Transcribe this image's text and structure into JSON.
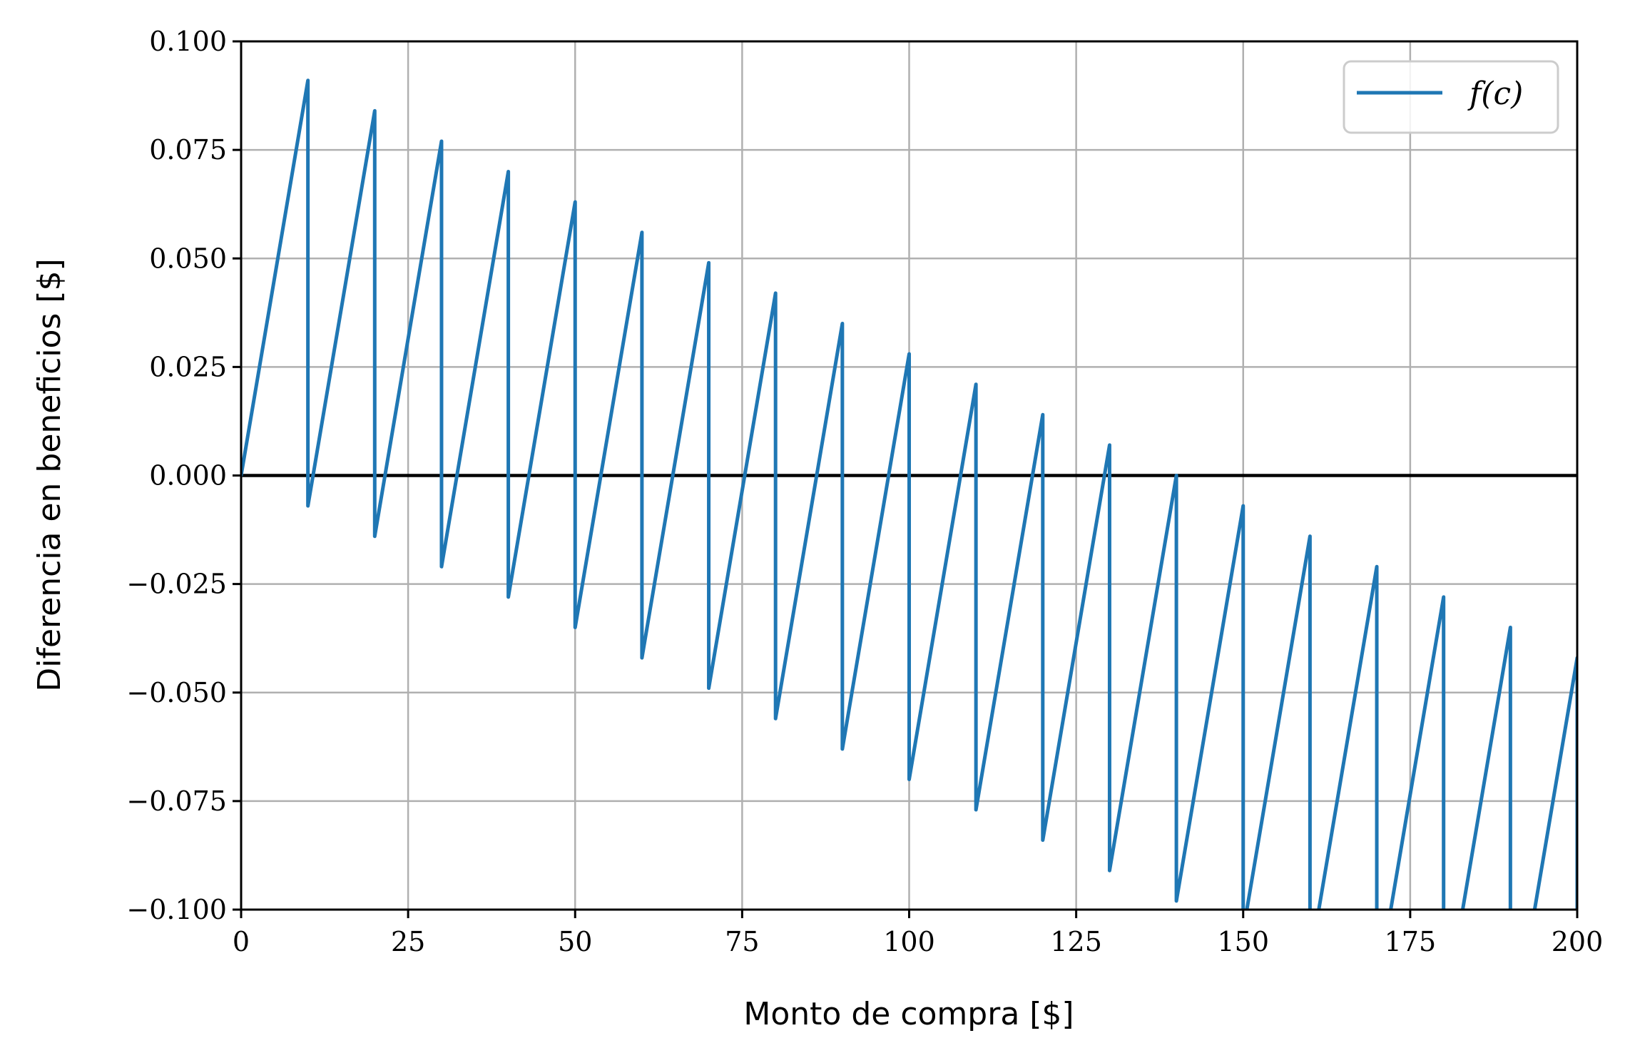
{
  "chart_data": {
    "type": "line",
    "title": "",
    "xlabel": "Monto de compra [$]",
    "ylabel": "Diferencia en beneficios [$]",
    "xlim": [
      0,
      200
    ],
    "ylim": [
      -0.1,
      0.1
    ],
    "x_ticks": [
      0,
      25,
      50,
      75,
      100,
      125,
      150,
      175,
      200
    ],
    "x_tick_labels": [
      "0",
      "25",
      "50",
      "75",
      "100",
      "125",
      "150",
      "175",
      "200"
    ],
    "y_ticks": [
      -0.1,
      -0.075,
      -0.05,
      -0.025,
      0,
      0.025,
      0.05,
      0.075,
      0.1
    ],
    "y_tick_labels": [
      "−0.100",
      "−0.075",
      "−0.050",
      "−0.025",
      "0.000",
      "0.025",
      "0.050",
      "0.075",
      "0.100"
    ],
    "grid": true,
    "reference_line": {
      "y": 0,
      "color": "#000000"
    },
    "legend": {
      "position": "top-right",
      "entries": [
        "f(c)"
      ]
    },
    "series": [
      {
        "name": "f(c)",
        "color": "#1f77b4",
        "x": [
          0,
          10,
          10,
          20,
          20,
          30,
          30,
          40,
          40,
          50,
          50,
          60,
          60,
          70,
          70,
          80,
          80,
          90,
          90,
          100,
          100,
          110,
          110,
          120,
          120,
          130,
          130,
          140,
          140,
          150,
          150,
          160,
          160,
          170,
          170,
          180,
          180,
          190,
          190,
          200,
          200
        ],
        "y": [
          0,
          0.091,
          -0.007,
          0.084,
          -0.014,
          0.077,
          -0.021,
          0.07,
          -0.028,
          0.063,
          -0.035,
          0.056,
          -0.042,
          0.049,
          -0.049,
          0.042,
          -0.056,
          0.035,
          -0.063,
          0.028,
          -0.07,
          0.021,
          -0.077,
          0.014,
          -0.084,
          0.007,
          -0.091,
          0.0,
          -0.098,
          -0.007,
          -0.105,
          -0.014,
          -0.112,
          -0.021,
          -0.119,
          -0.028,
          -0.126,
          -0.035,
          -0.133,
          -0.042,
          -0.14
        ]
      }
    ]
  }
}
